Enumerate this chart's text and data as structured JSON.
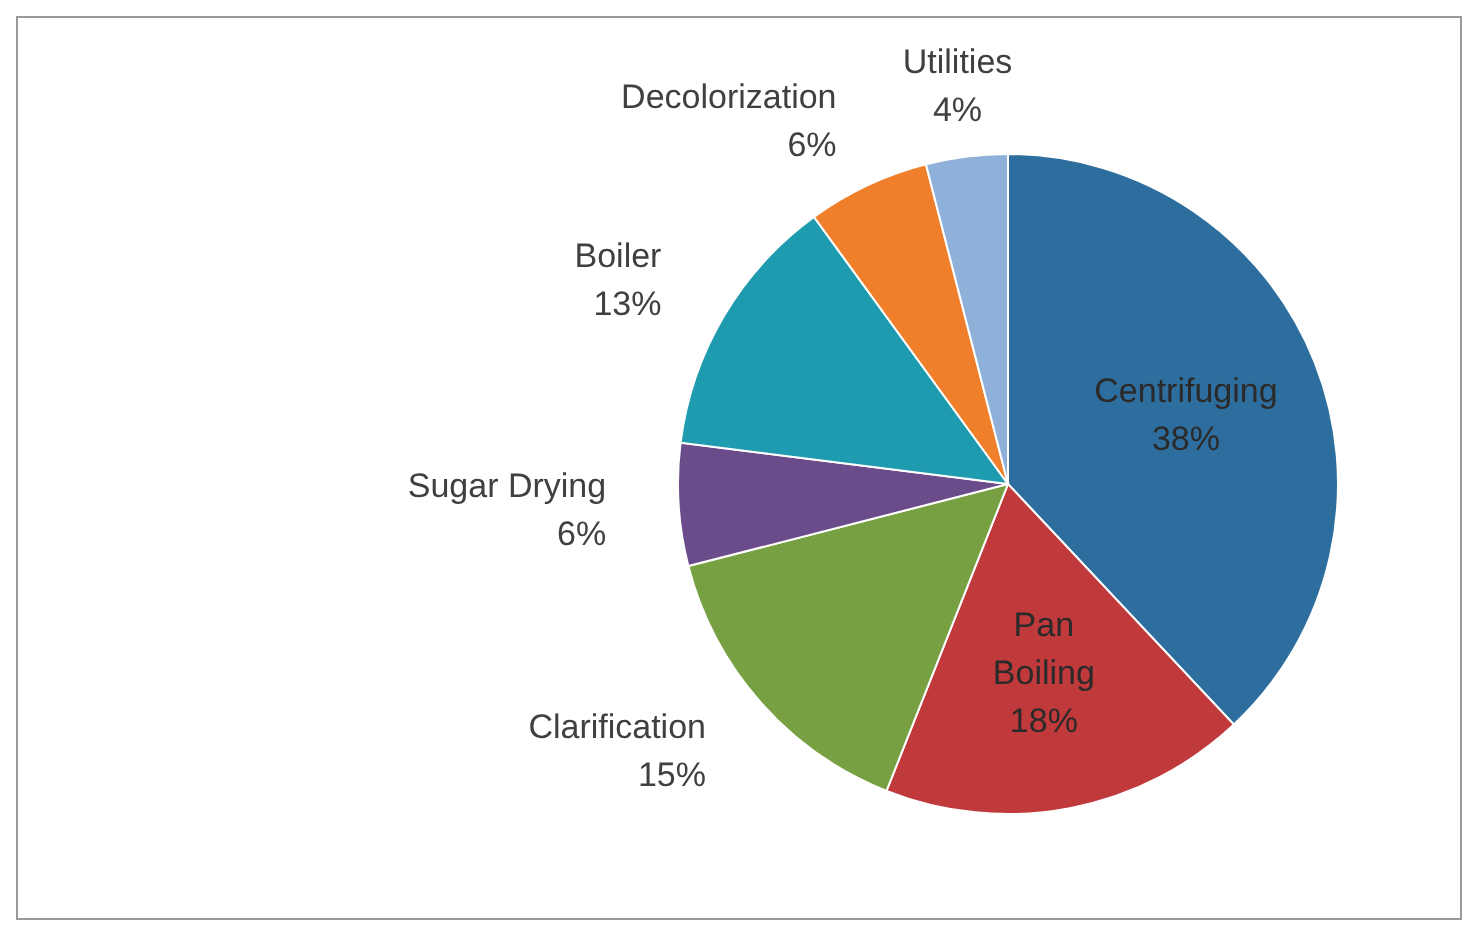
{
  "chart_data": {
    "type": "pie",
    "categories": [
      "Centrifuging",
      "Pan Boiling",
      "Clarification",
      "Sugar Drying",
      "Boiler",
      "Decolorization",
      "Utilities"
    ],
    "values": [
      38,
      18,
      15,
      6,
      13,
      6,
      4
    ],
    "value_labels": [
      "38%",
      "18%",
      "15%",
      "6%",
      "13%",
      "6%",
      "4%"
    ],
    "colors": [
      "#2e6e9e",
      "#c0393b",
      "#77a043",
      "#6b4c8a",
      "#1f9bb0",
      "#ef7f2a",
      "#8fb0d8"
    ],
    "legend": false
  }
}
